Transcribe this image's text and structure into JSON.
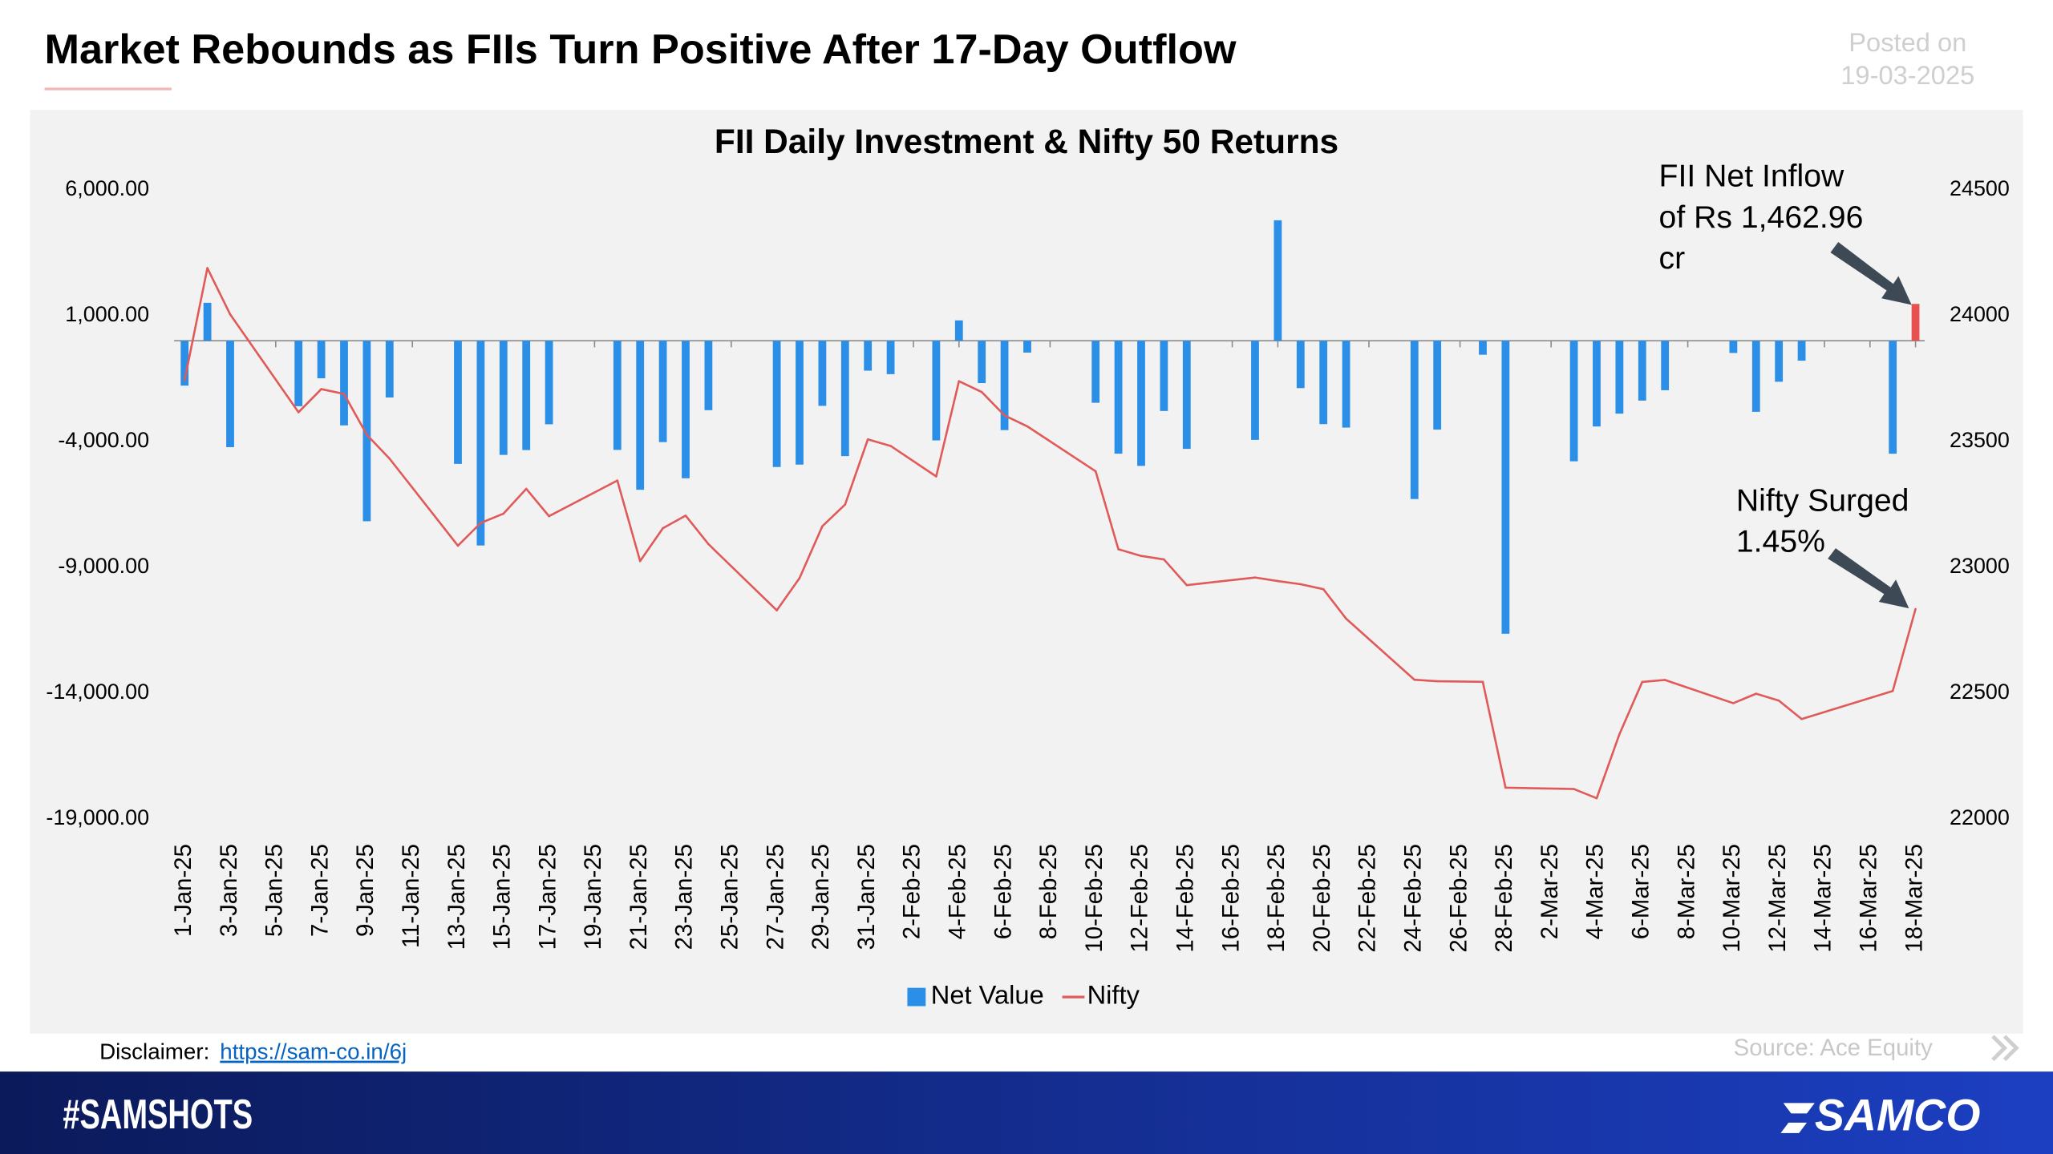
{
  "header": {
    "title": "Market Rebounds as FIIs Turn Positive After 17-Day Outflow",
    "posted_label": "Posted on",
    "posted_date": "19-03-2025"
  },
  "chart_data": {
    "type": "combo",
    "title": "FII Daily Investment & Nifty 50 Returns",
    "categories": [
      "1-Jan-25",
      null,
      "3-Jan-25",
      null,
      "5-Jan-25",
      null,
      "7-Jan-25",
      null,
      "9-Jan-25",
      null,
      "11-Jan-25",
      null,
      "13-Jan-25",
      null,
      "15-Jan-25",
      null,
      "17-Jan-25",
      null,
      "19-Jan-25",
      null,
      "21-Jan-25",
      null,
      "23-Jan-25",
      null,
      "25-Jan-25",
      null,
      "27-Jan-25",
      null,
      "29-Jan-25",
      null,
      "31-Jan-25",
      null,
      "2-Feb-25",
      null,
      "4-Feb-25",
      null,
      "6-Feb-25",
      null,
      "8-Feb-25",
      null,
      "10-Feb-25",
      null,
      "12-Feb-25",
      null,
      "14-Feb-25",
      null,
      "16-Feb-25",
      null,
      "18-Feb-25",
      null,
      "20-Feb-25",
      null,
      "22-Feb-25",
      null,
      "24-Feb-25",
      null,
      "26-Feb-25",
      null,
      "28-Feb-25",
      null,
      "2-Mar-25",
      null,
      "4-Mar-25",
      null,
      "6-Mar-25",
      null,
      "8-Mar-25",
      null,
      "10-Mar-25",
      null,
      "12-Mar-25",
      null,
      "14-Mar-25",
      null,
      "16-Mar-25",
      null,
      "18-Mar-25"
    ],
    "series": [
      {
        "name": "Net Value",
        "type": "bar",
        "color": "#2b8fe8",
        "last_color": "#e8504f",
        "values": [
          -1783,
          1507,
          -4227,
          null,
          null,
          -2600,
          -1491,
          -3362,
          -7170,
          -2254,
          null,
          null,
          -4892,
          -8133,
          -4534,
          -4342,
          -3318,
          null,
          null,
          -4336,
          -5920,
          -4026,
          -5462,
          -2758,
          null,
          null,
          -5015,
          -4920,
          -2586,
          -4582,
          -1188,
          -1327,
          null,
          -3958,
          809,
          -1682,
          -3549,
          -470,
          null,
          null,
          -2464,
          -4486,
          -4970,
          -2790,
          -4295,
          null,
          null,
          -3937,
          4786,
          -1881,
          -3311,
          -3449,
          null,
          null,
          -6287,
          -3529,
          null,
          -556,
          -11639,
          null,
          null,
          -4788,
          -3405,
          -2895,
          -2377,
          -1965,
          null,
          null,
          -485,
          -2823,
          -1628,
          -792,
          null,
          null,
          null,
          -4488,
          1462.96
        ]
      },
      {
        "name": "Nifty",
        "type": "line",
        "color": "#e05a5a",
        "axis": "y2",
        "values": [
          23742.9,
          24188.65,
          24004.75,
          null,
          null,
          23616.05,
          23707.9,
          23688.95,
          23526.5,
          23431.5,
          null,
          null,
          23085.95,
          23176.05,
          23213.2,
          23311.8,
          23203.2,
          null,
          null,
          23344.75,
          23024.65,
          23155.35,
          23205.35,
          23092.2,
          null,
          null,
          22829.15,
          22957.25,
          23163.1,
          23249.5,
          23508.4,
          23482.15,
          null,
          23361.05,
          23739.25,
          23696.3,
          23603.35,
          23559.95,
          null,
          null,
          23381.6,
          23071.8,
          23045.25,
          23031.4,
          22929.25,
          null,
          null,
          22959.5,
          22945.3,
          22932.9,
          22913.15,
          22795.9,
          null,
          null,
          22553.35,
          22547.55,
          null,
          22545.05,
          22124.7,
          null,
          null,
          22119.3,
          22082.65,
          22337.3,
          22544.7,
          22552.5,
          null,
          null,
          22460.3,
          22497.9,
          22470.5,
          22397.2,
          null,
          null,
          null,
          22508.75,
          22834.3
        ]
      }
    ],
    "ylim": [
      -19000,
      6000
    ],
    "yticks": [
      {
        "value": 6000,
        "label": "6,000.00"
      },
      {
        "value": 1000,
        "label": "1,000.00"
      },
      {
        "value": -4000,
        "label": "-4,000.00"
      },
      {
        "value": -9000,
        "label": "-9,000.00"
      },
      {
        "value": -14000,
        "label": "-14,000.00"
      },
      {
        "value": -19000,
        "label": "-19,000.00"
      }
    ],
    "y2lim": [
      22000,
      24500
    ],
    "y2ticks": [
      24500,
      24000,
      23500,
      23000,
      22500,
      22000
    ],
    "grid": false,
    "legend": "bottom",
    "annotations": [
      {
        "lines": [
          "FII Net Inflow",
          "of Rs 1,462.96",
          "cr"
        ]
      },
      {
        "lines": [
          "Nifty Surged",
          "1.45%"
        ]
      }
    ]
  },
  "disclaimer": {
    "label": "Disclaimer:",
    "link": "https://sam-co.in/6j"
  },
  "source": "Source: Ace Equity",
  "footer": {
    "hashtag": "#SAMSHOTS",
    "brand": "SAMCO"
  }
}
